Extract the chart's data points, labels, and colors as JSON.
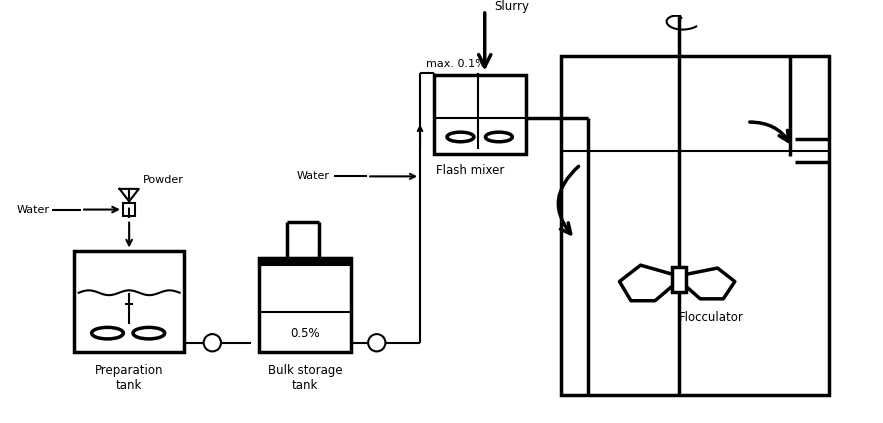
{
  "bg_color": "#ffffff",
  "lw": 1.5,
  "lw_thick": 2.5,
  "fig_width": 8.83,
  "fig_height": 4.23,
  "labels": {
    "preparation_tank": "Preparation\ntank",
    "bulk_storage_tank": "Bulk storage\ntank",
    "flash_mixer": "Flash mixer",
    "flocculator": "Flocculator",
    "powder": "Powder",
    "water_left": "Water",
    "water_mid": "Water",
    "slurry": "Slurry",
    "percent_05": "0.5%",
    "percent_01": "max. 0.1%"
  }
}
